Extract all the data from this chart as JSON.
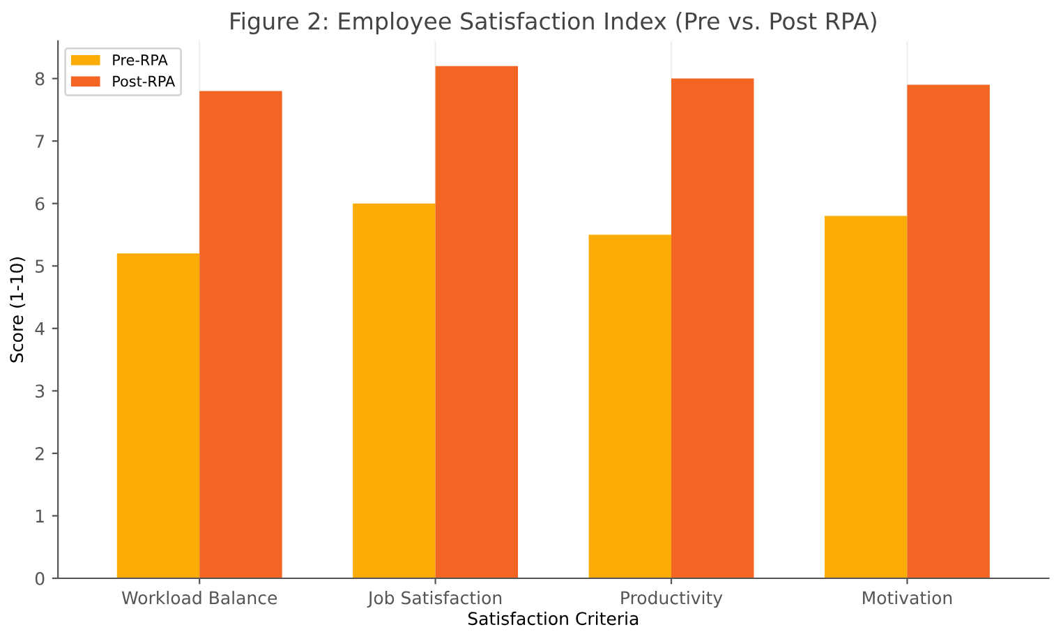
{
  "chart_data": {
    "type": "bar",
    "title": "Figure 2: Employee Satisfaction Index (Pre vs. Post RPA)",
    "xlabel": "Satisfaction Criteria",
    "ylabel": "Score (1-10)",
    "categories": [
      "Workload Balance",
      "Job Satisfaction",
      "Productivity",
      "Motivation"
    ],
    "series": [
      {
        "name": "Pre-RPA",
        "color": "#fbab05",
        "values": [
          5.2,
          6.0,
          5.5,
          5.8
        ]
      },
      {
        "name": "Post-RPA",
        "color": "#f26522",
        "values": [
          7.8,
          8.2,
          8.0,
          7.9
        ]
      }
    ],
    "ylim": [
      0,
      8.6
    ],
    "yticks": [
      0,
      1,
      2,
      3,
      4,
      5,
      6,
      7,
      8
    ],
    "grid": "x",
    "legend": "top left"
  }
}
